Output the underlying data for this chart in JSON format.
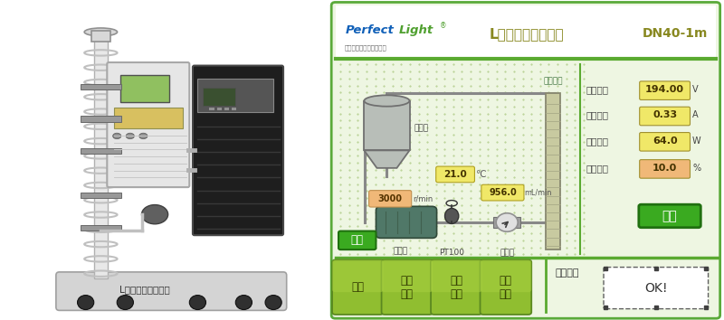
{
  "bg_color": "#ffffff",
  "left_label": "L级光化学反应系统",
  "right_panel": {
    "brand_perfect": "Perfect",
    "brand_light": "Light",
    "brand_sup": "®",
    "brand_sub": "北京泊菲莱科技有限公司",
    "title": "L级光化学反应系统",
    "model": "DN40-1m",
    "label_vessel": "原料釜",
    "label_pump": "循环泵",
    "label_reactor": "光反应器",
    "label_pt100": "PT100",
    "label_flowmeter": "流量计",
    "val_temp": "21.0",
    "val_temp_unit": "℃",
    "val_rpm": "3000",
    "val_rpm_unit": "r/min",
    "val_flow": "956.0",
    "val_flow_unit": "mL/min",
    "val_voltage": "194.00",
    "val_voltage_unit": "V",
    "val_current": "0.33",
    "val_current_unit": "A",
    "val_power": "64.0",
    "val_power_unit": "W",
    "val_setcurrent": "10.0",
    "val_setcurrent_unit": "%",
    "label_voltage": "当前电压",
    "label_current": "当前电流",
    "label_power": "当前功率",
    "label_setcurrent": "设定电流",
    "btn_open": "开启",
    "nav_items": [
      "主页",
      "参数\n设定",
      "历史\n数据",
      "报警\n记录"
    ],
    "work_status_label": "工作状态",
    "work_status_value": "OK!",
    "outer_bg": "#eef6e2",
    "outer_border": "#5aaa3a",
    "header_bg": "#ffffff",
    "diag_bg": "#edf5e2",
    "dot_color": "#b0cc88",
    "pipe_color": "#888888",
    "inner_border": "#6ab040",
    "yellow_bg": "#f0e868",
    "orange_bg": "#f0b878",
    "green_btn": "#3aaa20",
    "nav_bg_top": "#a8d040",
    "nav_bg_bot": "#78a020",
    "footer_bg": "#eef6e2",
    "title_color": "#888820",
    "model_color": "#888820",
    "param_label_color": "#444444",
    "param_val_color": "#443300"
  }
}
